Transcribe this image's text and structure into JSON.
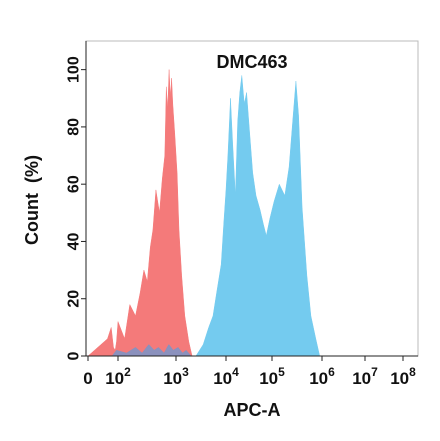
{
  "chart_data": {
    "type": "area",
    "title": "DMC463",
    "xlabel": "APC-A",
    "ylabel": "Count  (%)",
    "x_scale": "biexponential",
    "x_ticks": [
      {
        "value": 0,
        "base": "0",
        "exp": ""
      },
      {
        "value": 100,
        "base": "10",
        "exp": "2"
      },
      {
        "value": 1000,
        "base": "10",
        "exp": "3"
      },
      {
        "value": 10000,
        "base": "10",
        "exp": "4"
      },
      {
        "value": 100000,
        "base": "10",
        "exp": "5"
      },
      {
        "value": 1000000,
        "base": "10",
        "exp": "6"
      },
      {
        "value": 10000000,
        "base": "10",
        "exp": "7"
      },
      {
        "value": 100000000,
        "base": "10",
        "exp": "8"
      }
    ],
    "y_ticks": [
      "0",
      "20",
      "40",
      "60",
      "80",
      "100"
    ],
    "ylim": [
      0,
      110
    ],
    "series": [
      {
        "color": "#f47a7a",
        "points": [
          [
            0,
            0
          ],
          [
            20,
            6
          ],
          [
            35,
            10
          ],
          [
            50,
            3
          ],
          [
            65,
            2
          ],
          [
            80,
            5
          ],
          [
            100,
            12
          ],
          [
            130,
            6
          ],
          [
            160,
            18
          ],
          [
            200,
            14
          ],
          [
            240,
            22
          ],
          [
            280,
            30
          ],
          [
            320,
            26
          ],
          [
            360,
            38
          ],
          [
            400,
            44
          ],
          [
            450,
            58
          ],
          [
            520,
            50
          ],
          [
            580,
            62
          ],
          [
            640,
            70
          ],
          [
            680,
            94
          ],
          [
            720,
            86
          ],
          [
            760,
            100
          ],
          [
            800,
            90
          ],
          [
            840,
            97
          ],
          [
            880,
            88
          ],
          [
            950,
            78
          ],
          [
            1050,
            64
          ],
          [
            1150,
            44
          ],
          [
            1300,
            28
          ],
          [
            1500,
            14
          ],
          [
            1800,
            5
          ],
          [
            2100,
            0
          ]
        ]
      },
      {
        "color": "#74cbef",
        "points": [
          [
            2500,
            0
          ],
          [
            3500,
            4
          ],
          [
            4500,
            10
          ],
          [
            5500,
            14
          ],
          [
            6500,
            22
          ],
          [
            8000,
            32
          ],
          [
            9000,
            46
          ],
          [
            10000,
            58
          ],
          [
            11000,
            70
          ],
          [
            12500,
            90
          ],
          [
            14000,
            74
          ],
          [
            16000,
            56
          ],
          [
            18000,
            82
          ],
          [
            20000,
            92
          ],
          [
            22000,
            98
          ],
          [
            25000,
            88
          ],
          [
            28000,
            92
          ],
          [
            32000,
            80
          ],
          [
            38000,
            64
          ],
          [
            45000,
            56
          ],
          [
            55000,
            51
          ],
          [
            65000,
            46
          ],
          [
            75000,
            42
          ],
          [
            90000,
            48
          ],
          [
            110000,
            54
          ],
          [
            140000,
            60
          ],
          [
            180000,
            56
          ],
          [
            220000,
            66
          ],
          [
            260000,
            82
          ],
          [
            300000,
            96
          ],
          [
            340000,
            84
          ],
          [
            400000,
            52
          ],
          [
            500000,
            28
          ],
          [
            600000,
            14
          ],
          [
            750000,
            6
          ],
          [
            900000,
            0
          ]
        ]
      },
      {
        "color": "#7f93c4",
        "points": [
          [
            40,
            0
          ],
          [
            80,
            2
          ],
          [
            140,
            1
          ],
          [
            200,
            3
          ],
          [
            260,
            1
          ],
          [
            340,
            4
          ],
          [
            420,
            2
          ],
          [
            500,
            3
          ],
          [
            620,
            1
          ],
          [
            750,
            4
          ],
          [
            900,
            2
          ],
          [
            1100,
            3
          ],
          [
            1350,
            1
          ],
          [
            1600,
            2
          ],
          [
            2000,
            0
          ]
        ]
      }
    ]
  }
}
